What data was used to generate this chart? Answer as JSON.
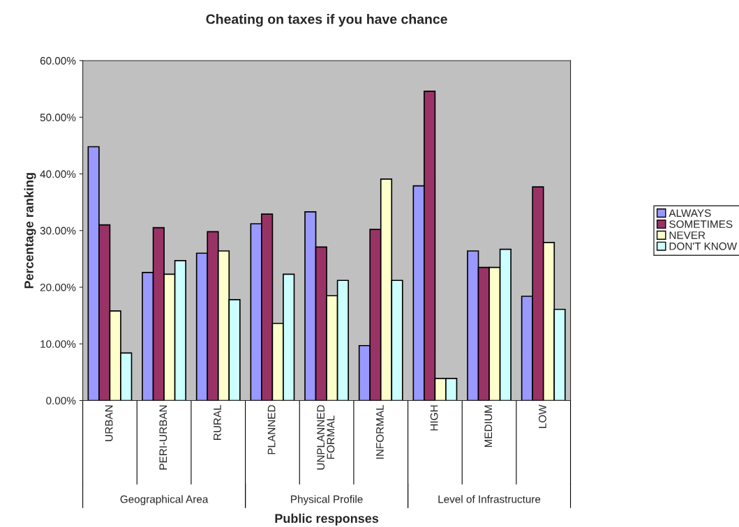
{
  "chart_data": {
    "type": "bar",
    "title": "Cheating on taxes if you have chance",
    "xlabel": "Public responses",
    "ylabel": "Percentage ranking",
    "categories": [
      "URBAN",
      "PERI-URBAN",
      "RURAL",
      "PLANNED",
      "UNPLANNED\nFORMAL",
      "INFORMAL",
      "HIGH",
      "MEDIUM",
      "LOW"
    ],
    "series": [
      {
        "name": "ALWAYS",
        "color": "#9999ff",
        "values": [
          44.8,
          22.6,
          26.0,
          31.2,
          33.3,
          9.7,
          37.9,
          26.4,
          18.4
        ]
      },
      {
        "name": "SOMETIMES",
        "color": "#993366",
        "values": [
          31.0,
          30.5,
          29.8,
          32.9,
          27.1,
          30.2,
          54.6,
          23.5,
          37.7
        ]
      },
      {
        "name": "NEVER",
        "color": "#ffffcc",
        "values": [
          15.8,
          22.3,
          26.4,
          13.6,
          18.5,
          39.1,
          3.9,
          23.5,
          27.9
        ]
      },
      {
        "name": "DON'T KNOW",
        "color": "#ccffff",
        "values": [
          8.4,
          24.7,
          17.8,
          22.3,
          21.2,
          21.2,
          3.9,
          26.7,
          16.1
        ]
      }
    ],
    "annotations": [
      "Geographical Area",
      "Physical Profile",
      "Level of Infrastructure"
    ],
    "ylim": [
      0,
      60
    ],
    "yticks": [
      {
        "value": 0,
        "label": "0.00%"
      },
      {
        "value": 10,
        "label": "10.00%"
      },
      {
        "value": 20,
        "label": "20.00%"
      },
      {
        "value": 30,
        "label": "30.00%"
      },
      {
        "value": 40,
        "label": "40.00%"
      },
      {
        "value": 50,
        "label": "50.00%"
      },
      {
        "value": 60,
        "label": "60.00%"
      }
    ],
    "legend": "right",
    "grid": false
  }
}
